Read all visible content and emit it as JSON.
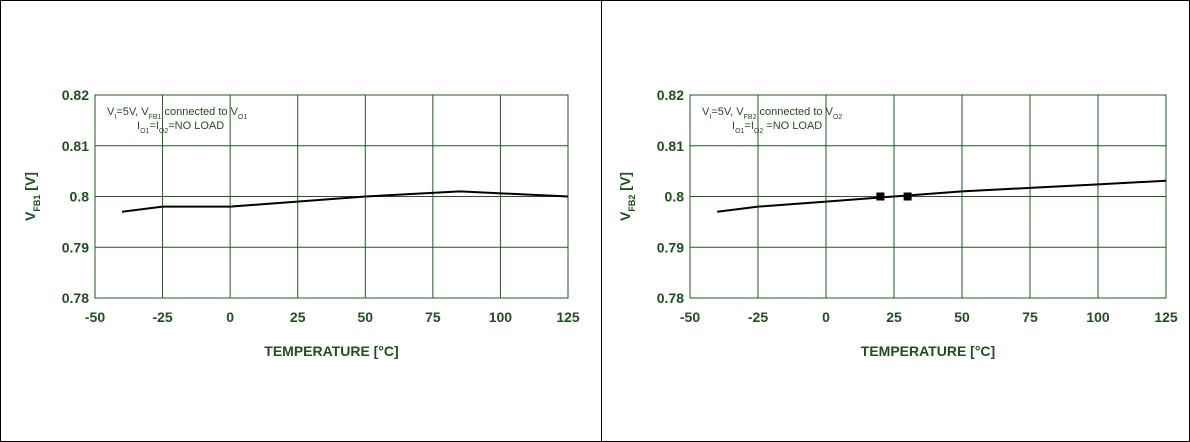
{
  "colors": {
    "text": "#1f4e1f",
    "grid": "#1f5a1f",
    "line": "#000000"
  },
  "chart_data": [
    {
      "type": "line",
      "title": "",
      "xlabel": "TEMPERATURE [°C]",
      "ylabel": {
        "main": "V",
        "sub": "FB1",
        "unit": " [V]"
      },
      "annotation": {
        "line1": [
          {
            "t": "V"
          },
          {
            "t": "I",
            "sub": true
          },
          {
            "t": "=5V, V"
          },
          {
            "t": "FB1",
            "sub": true
          },
          {
            "t": " connected to V"
          },
          {
            "t": "O1",
            "sub": true
          }
        ],
        "line2": [
          {
            "t": "I"
          },
          {
            "t": "O1",
            "sub": true
          },
          {
            "t": "=I"
          },
          {
            "t": "O2",
            "sub": true
          },
          {
            "t": "=NO LOAD"
          }
        ]
      },
      "xlim": [
        -50,
        125
      ],
      "ylim": [
        0.78,
        0.82
      ],
      "xticks": [
        -50,
        -25,
        0,
        25,
        50,
        75,
        100,
        125
      ],
      "xtick_labels": [
        "-50",
        "-25",
        "0",
        "25",
        "50",
        "75",
        "100",
        "125"
      ],
      "yticks": [
        0.78,
        0.79,
        0.8,
        0.81,
        0.82
      ],
      "ytick_labels": [
        "0.78",
        "0.79",
        "0.8",
        "0.81",
        "0.82"
      ],
      "grid": true,
      "series": [
        {
          "x": [
            -40,
            -25,
            0,
            50,
            85,
            125
          ],
          "y": [
            0.797,
            0.798,
            0.798,
            0.8,
            0.801,
            0.8
          ]
        }
      ],
      "markers": []
    },
    {
      "type": "line",
      "title": "",
      "xlabel": "TEMPERATURE [°C]",
      "ylabel": {
        "main": "V",
        "sub": "FB2",
        "unit": " [V]"
      },
      "annotation": {
        "line1": [
          {
            "t": "V"
          },
          {
            "t": "I",
            "sub": true
          },
          {
            "t": "=5V, V"
          },
          {
            "t": "FB2",
            "sub": true
          },
          {
            "t": " connected to V"
          },
          {
            "t": "O2",
            "sub": true
          }
        ],
        "line2": [
          {
            "t": "I"
          },
          {
            "t": "O1",
            "sub": true
          },
          {
            "t": "=I"
          },
          {
            "t": "O2",
            "sub": true
          },
          {
            "t": " =NO LOAD"
          }
        ]
      },
      "xlim": [
        -50,
        125
      ],
      "ylim": [
        0.78,
        0.82
      ],
      "xticks": [
        -50,
        -25,
        0,
        25,
        50,
        75,
        100,
        125
      ],
      "xtick_labels": [
        "-50",
        "-25",
        "0",
        "25",
        "50",
        "75",
        "100",
        "125"
      ],
      "yticks": [
        0.78,
        0.79,
        0.8,
        0.81,
        0.82
      ],
      "ytick_labels": [
        "0.78",
        "0.79",
        "0.8",
        "0.81",
        "0.82"
      ],
      "grid": true,
      "series": [
        {
          "x": [
            -40,
            -25,
            0,
            25,
            50,
            75,
            100,
            125
          ],
          "y": [
            0.797,
            0.798,
            0.799,
            0.8,
            0.801,
            0.8017,
            0.8024,
            0.8031
          ]
        }
      ],
      "markers": [
        {
          "x": 20,
          "y": 0.8
        },
        {
          "x": 30,
          "y": 0.8
        }
      ]
    }
  ]
}
